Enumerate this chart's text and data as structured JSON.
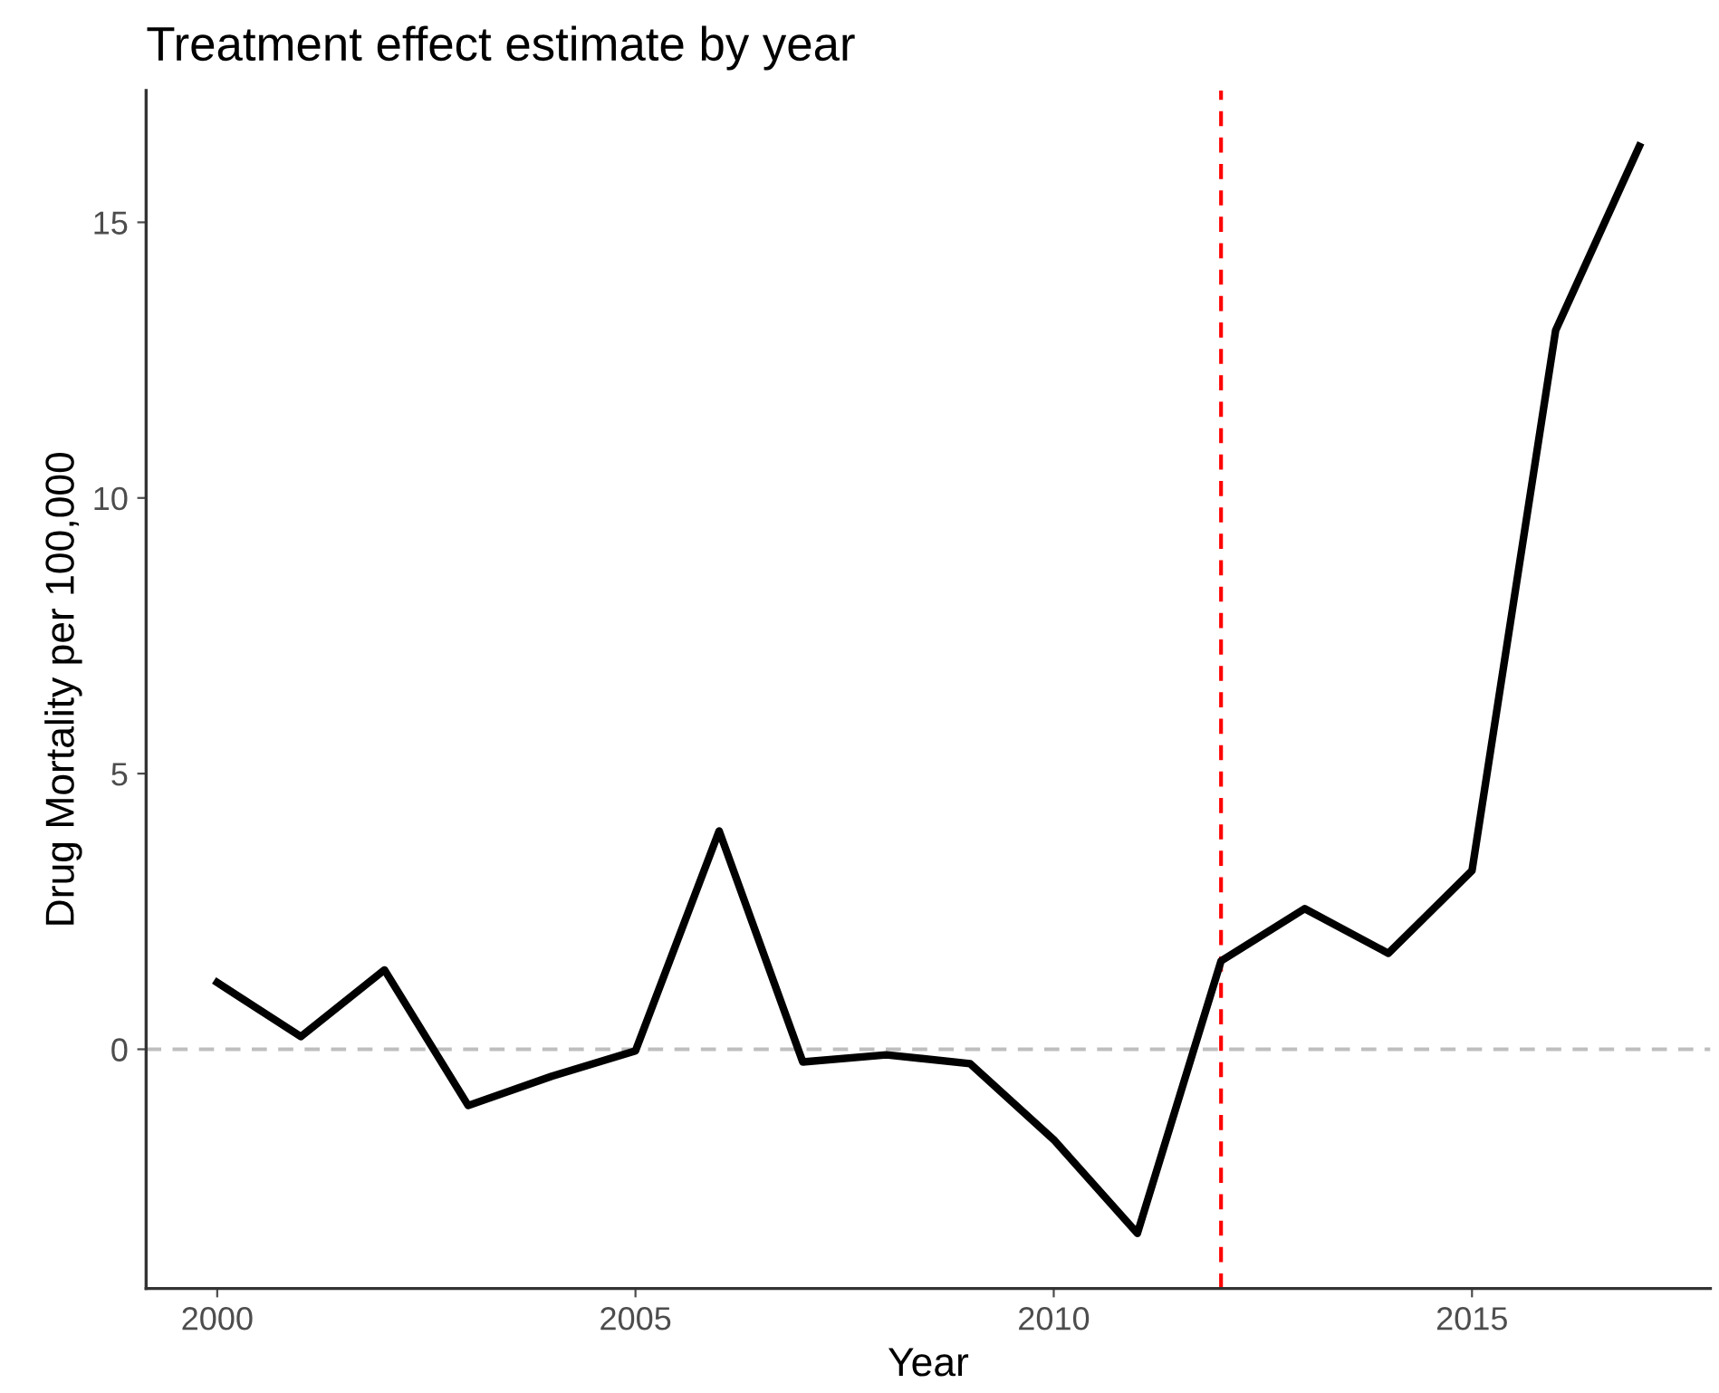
{
  "chart_data": {
    "type": "line",
    "title": "Treatment effect estimate by year",
    "xlabel": "Year",
    "ylabel": "Drug Mortality per 100,000",
    "x": [
      2000,
      2001,
      2002,
      2003,
      2004,
      2005,
      2006,
      2007,
      2008,
      2009,
      2010,
      2011,
      2012,
      2013,
      2014,
      2015,
      2016,
      2017
    ],
    "series": [
      {
        "color": "#000000",
        "values": [
          1.21,
          0.23,
          1.44,
          -1.02,
          -0.49,
          -0.03,
          3.96,
          -0.23,
          -0.1,
          -0.26,
          -1.64,
          -3.34,
          1.6,
          2.55,
          1.74,
          3.24,
          13.04,
          16.38
        ]
      }
    ],
    "xlim": [
      1999.15,
      2017.85
    ],
    "ylim": [
      -4.34,
      17.39
    ],
    "xticks": [
      2000,
      2005,
      2010,
      2015
    ],
    "yticks": [
      0,
      5,
      10,
      15
    ],
    "ref_lines": [
      {
        "axis": "y",
        "value": 0,
        "color": "#bebebe",
        "line_style": "dashed"
      },
      {
        "axis": "x",
        "value": 2012,
        "color": "#ff0000",
        "line_style": "dashed"
      }
    ],
    "grid": false,
    "legend": false,
    "line_style": "solid"
  }
}
